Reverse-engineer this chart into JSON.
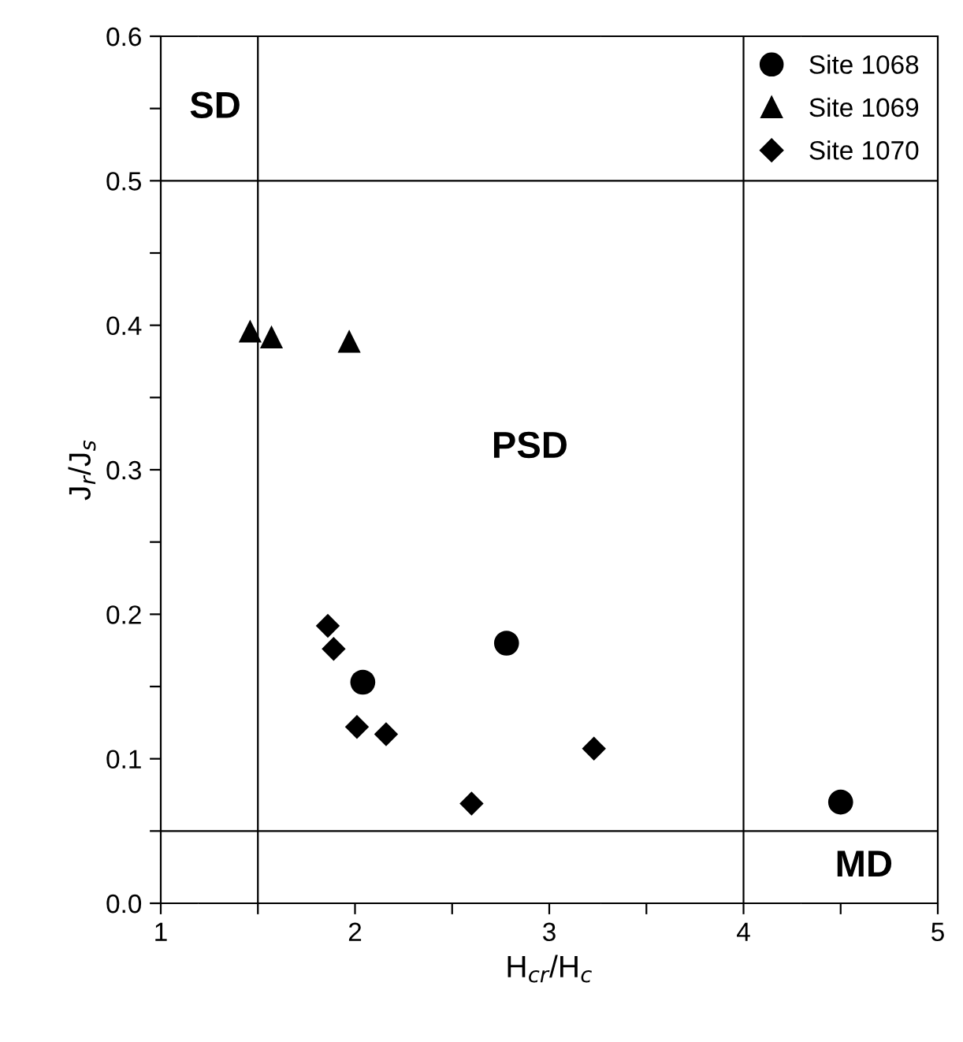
{
  "chart_data": {
    "type": "scatter",
    "xlabel": "H$_{cr}$/H$_{c}$",
    "ylabel": "J$_{r}$/J$_{s}$",
    "xlim": [
      1,
      5
    ],
    "ylim": [
      0,
      0.6
    ],
    "xticks": [
      1,
      {
        "value": 1.5,
        "label": null
      },
      2,
      {
        "value": 2.5,
        "label": null
      },
      3,
      {
        "value": 3.5,
        "label": null
      },
      4,
      {
        "value": 4.5,
        "label": null
      },
      5
    ],
    "yticks": [
      {
        "value": 0,
        "label": "0.0"
      },
      {
        "value": 0.05,
        "label": null
      },
      0.1,
      {
        "value": 0.15,
        "label": null
      },
      0.2,
      {
        "value": 0.25,
        "label": null
      },
      0.3,
      {
        "value": 0.35,
        "label": null
      },
      0.4,
      {
        "value": 0.45,
        "label": null
      },
      0.5,
      {
        "value": 0.55,
        "label": null
      },
      0.6
    ],
    "series": [
      {
        "name": "Site 1068",
        "color": "#000000",
        "marker": "circle",
        "x": [
          2.04,
          2.78,
          4.5
        ],
        "values": [
          0.153,
          0.18,
          0.07
        ]
      },
      {
        "name": "Site 1069",
        "color": "#000000",
        "marker": "triangle",
        "x": [
          1.46,
          1.57,
          1.97
        ],
        "values": [
          0.396,
          0.392,
          0.389
        ]
      },
      {
        "name": "Site 1070",
        "color": "#000000",
        "marker": "diamond",
        "x": [
          1.86,
          1.89,
          2.01,
          2.16,
          2.6,
          3.23
        ],
        "values": [
          0.192,
          0.176,
          0.122,
          0.117,
          0.069,
          0.107
        ]
      }
    ],
    "ref_lines": [
      {
        "axis": "x",
        "value": 1.5,
        "color": "#000000"
      },
      {
        "axis": "x",
        "value": 4,
        "color": "#000000"
      },
      {
        "axis": "y",
        "value": 0.5,
        "color": "#000000"
      },
      {
        "axis": "y",
        "value": 0.05,
        "color": "#000000"
      }
    ],
    "annotations": [
      "SD",
      "PSD",
      "MD"
    ],
    "legend": "top right",
    "grid": false
  }
}
